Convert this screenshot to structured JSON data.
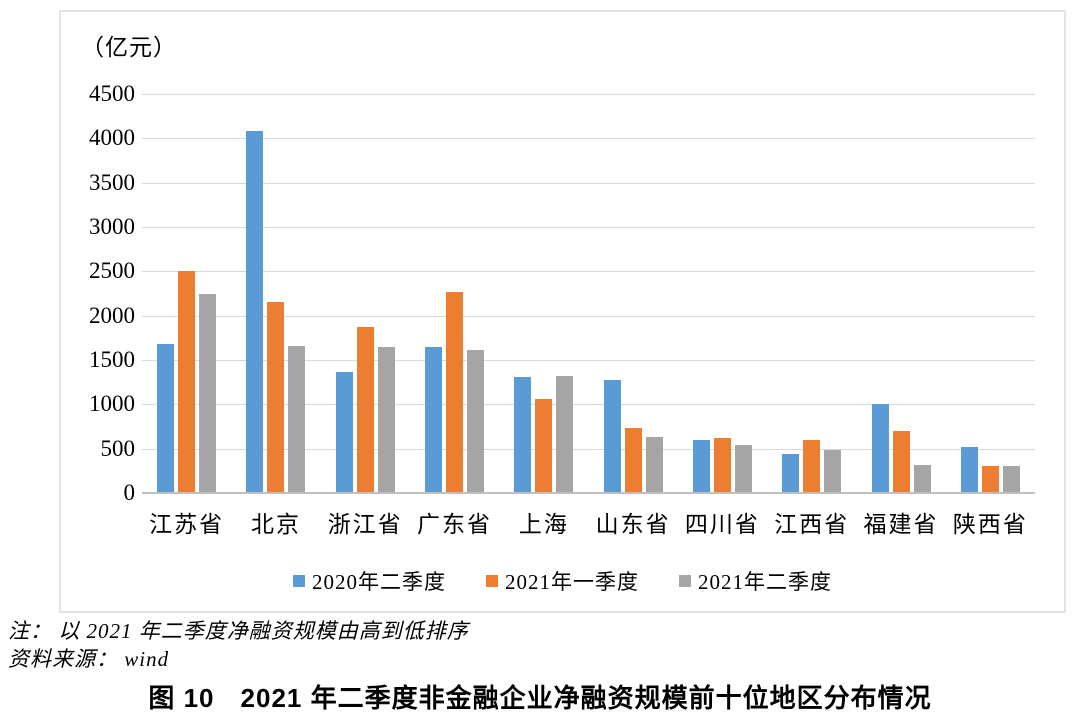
{
  "chart_data": {
    "type": "bar",
    "unit_label": "（亿元）",
    "categories": [
      "江苏省",
      "北京",
      "浙江省",
      "广东省",
      "上海",
      "山东省",
      "四川省",
      "江西省",
      "福建省",
      "陕西省"
    ],
    "series": [
      {
        "name": "2020年二季度",
        "color": "#5B9BD5",
        "values": [
          1680,
          4080,
          1370,
          1650,
          1310,
          1270,
          600,
          440,
          1000,
          520
        ]
      },
      {
        "name": "2021年一季度",
        "color": "#ED7D31",
        "values": [
          2500,
          2150,
          1870,
          2270,
          1060,
          730,
          620,
          600,
          700,
          300
        ]
      },
      {
        "name": "2021年二季度",
        "color": "#A5A5A5",
        "values": [
          2250,
          1660,
          1650,
          1610,
          1320,
          630,
          540,
          490,
          320,
          300
        ]
      }
    ],
    "ylim": [
      0,
      4500
    ],
    "ytick_step": 500,
    "grid": true,
    "legend_position": "bottom",
    "gridline_color": "#D9D9D9",
    "axis_line_color": "#BFBFBF"
  },
  "notes": {
    "note_line": "注： 以 2021 年二季度净融资规模由高到低排序",
    "source_line": "资料来源： wind"
  },
  "caption": {
    "figure_label": "图 10",
    "figure_title": "2021 年二季度非金融企业净融资规模前十位地区分布情况"
  }
}
